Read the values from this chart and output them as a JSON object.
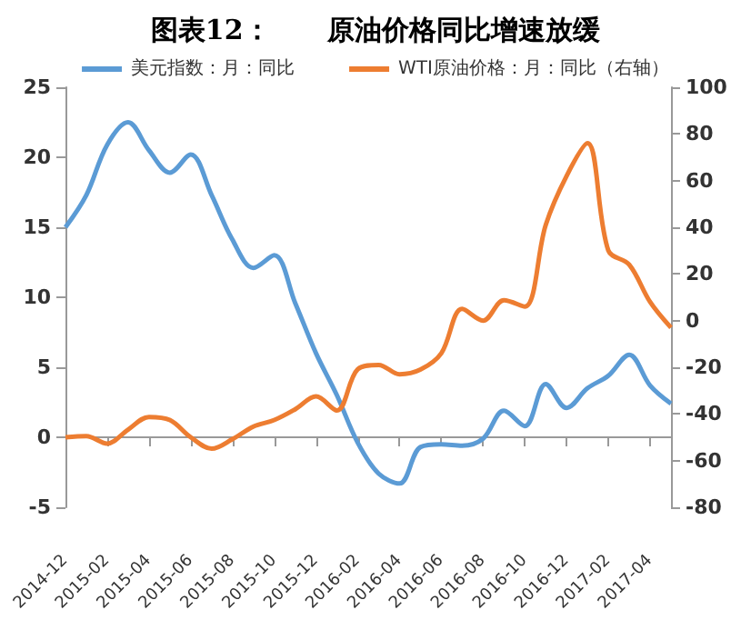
{
  "chart_data": {
    "type": "line",
    "title": "图表12：      原油价格同比增速放缓",
    "categories": [
      "2014-12",
      null,
      "2015-02",
      null,
      "2015-04",
      null,
      "2015-06",
      null,
      "2015-08",
      null,
      "2015-10",
      null,
      "2015-12",
      null,
      "2016-02",
      null,
      "2016-04",
      null,
      "2016-06",
      null,
      "2016-08",
      null,
      "2016-10",
      null,
      "2016-12",
      null,
      "2017-02",
      null,
      "2017-04",
      null
    ],
    "series": [
      {
        "name": "美元指数：月：同比",
        "color": "#5b9bd5",
        "values": [
          15,
          17.3,
          20.9,
          22.5,
          20.5,
          18.9,
          20.2,
          17.3,
          14.1,
          12.1,
          13.0,
          9.6,
          6.0,
          3.0,
          -0.4,
          -2.6,
          -3.3,
          -0.7,
          -0.5,
          -0.6,
          -0.1,
          1.9,
          0.8,
          3.8,
          2.1,
          3.5,
          4.4,
          5.9,
          3.7,
          2.4
        ]
      },
      {
        "name": "WTI原油价格：月：同比（右轴）",
        "color": "#ed7d31",
        "axis": "y2",
        "values": [
          -50,
          -49.5,
          -52.7,
          -46.7,
          -41.3,
          -42.6,
          -50,
          -54.9,
          -50.8,
          -45.4,
          -42.6,
          -38,
          -32.5,
          -38.5,
          -20.8,
          -19,
          -23,
          -21,
          -14,
          5,
          0,
          8.7,
          6,
          41,
          62,
          76,
          30,
          24,
          8,
          -3
        ]
      }
    ],
    "ylim": [
      -5,
      25
    ],
    "yticks": [
      -5,
      0,
      5,
      10,
      15,
      20,
      25
    ],
    "y2lim": [
      -80,
      100
    ],
    "y2ticks": [
      -80,
      -60,
      -40,
      -20,
      0,
      20,
      40,
      60,
      80,
      100
    ],
    "legend": "top",
    "marker": "none"
  }
}
